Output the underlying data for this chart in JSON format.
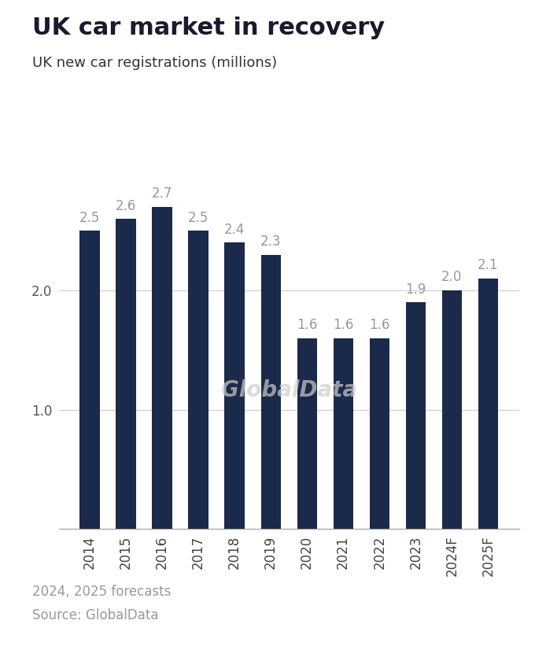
{
  "title": "UK car market in recovery",
  "subtitle": "UK new car registrations (millions)",
  "categories": [
    "2014",
    "2015",
    "2016",
    "2017",
    "2018",
    "2019",
    "2020",
    "2021",
    "2022",
    "2023",
    "2024F",
    "2025F"
  ],
  "values": [
    2.5,
    2.6,
    2.7,
    2.5,
    2.4,
    2.3,
    1.6,
    1.6,
    1.6,
    1.9,
    2.0,
    2.1
  ],
  "bar_color": "#1b2a4a",
  "label_color": "#999999",
  "background_color": "#ffffff",
  "yticks": [
    1.0,
    2.0
  ],
  "ylim": [
    0,
    3.05
  ],
  "footnote1": "2024, 2025 forecasts",
  "footnote2": "Source: GlobalData",
  "watermark": "GlobalData",
  "title_fontsize": 22,
  "subtitle_fontsize": 13,
  "bar_label_fontsize": 12,
  "axis_label_fontsize": 12,
  "footnote_fontsize": 12,
  "footnote_color": "#999999"
}
